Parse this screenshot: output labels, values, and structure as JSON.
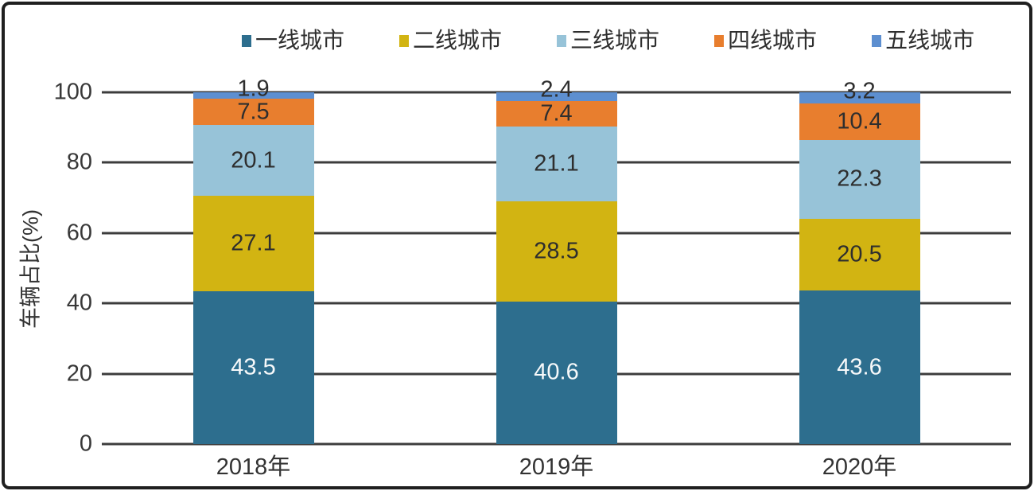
{
  "chart_data": {
    "type": "bar",
    "stacked": true,
    "title": "",
    "xlabel": "",
    "ylabel": "车辆占比(%)",
    "ylim": [
      0,
      100
    ],
    "yticks": [
      0,
      20,
      40,
      60,
      80,
      100
    ],
    "categories": [
      "2018年",
      "2019年",
      "2020年"
    ],
    "series": [
      {
        "name": "一线城市",
        "color": "#2d6e8e",
        "label_color": "#f7f9fa",
        "values": [
          43.5,
          40.6,
          43.6
        ]
      },
      {
        "name": "二线城市",
        "color": "#d2b412",
        "label_color": "#2e2e2e",
        "values": [
          27.1,
          28.5,
          20.5
        ]
      },
      {
        "name": "三线城市",
        "color": "#97c3d8",
        "label_color": "#2e2e2e",
        "values": [
          20.1,
          21.1,
          22.3
        ]
      },
      {
        "name": "四线城市",
        "color": "#e87e2e",
        "label_color": "#2e2e2e",
        "values": [
          7.5,
          7.4,
          10.4
        ]
      },
      {
        "name": "五线城市",
        "color": "#5d8fd0",
        "label_color": "#2e2e2e",
        "values": [
          1.9,
          2.4,
          3.2
        ]
      }
    ],
    "legend_position": "top",
    "grid": true,
    "grid_color": "#3c3c3c",
    "text_color": "#383838"
  }
}
